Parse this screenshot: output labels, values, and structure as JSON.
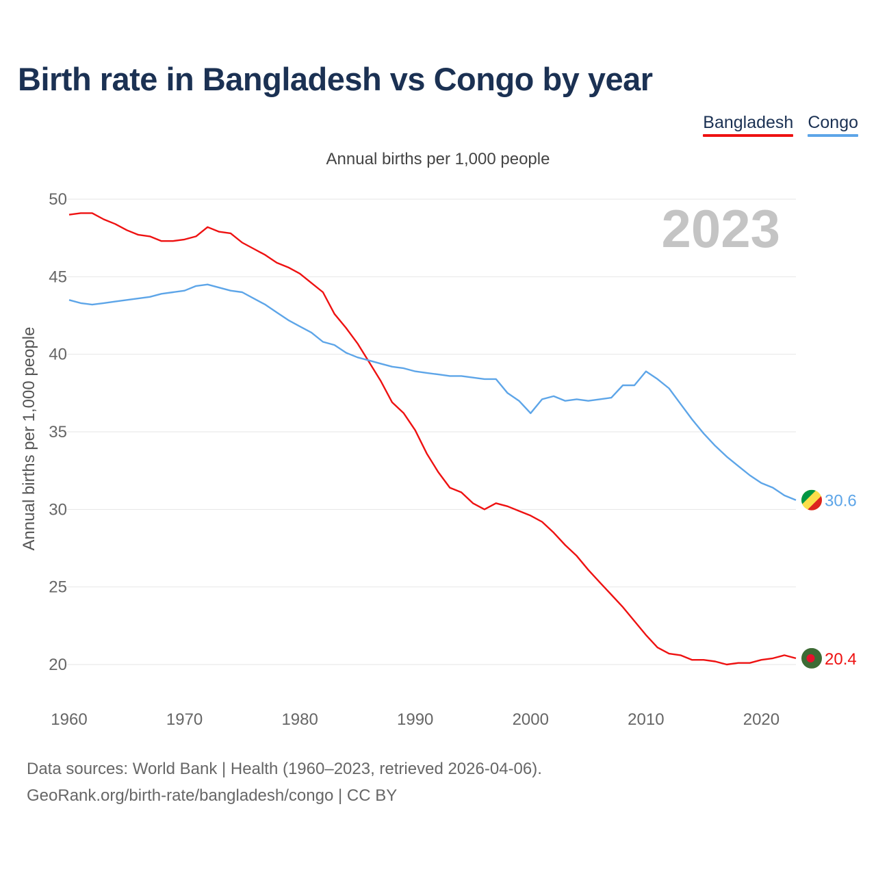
{
  "title": "Birth rate in Bangladesh vs Congo by year",
  "legend": [
    {
      "label": "Bangladesh",
      "color": "#ee1111"
    },
    {
      "label": "Congo",
      "color": "#5da5e8"
    }
  ],
  "sources": {
    "line1": "Data sources: World Bank | Health (1960–2023, retrieved 2026-04-06).",
    "line2": "GeoRank.org/birth-rate/bangladesh/congo | CC BY"
  },
  "chart_data": {
    "type": "line",
    "title": "Annual births per 1,000 people",
    "xlabel": "",
    "ylabel": "Annual births per 1,000 people",
    "watermark_year": "2023",
    "xlim": [
      1960,
      2023
    ],
    "ylim": [
      20,
      50
    ],
    "x_ticks": [
      1960,
      1970,
      1980,
      1990,
      2000,
      2010,
      2020
    ],
    "y_ticks": [
      20,
      25,
      30,
      35,
      40,
      45,
      50
    ],
    "grid": true,
    "x": [
      1960,
      1961,
      1962,
      1963,
      1964,
      1965,
      1966,
      1967,
      1968,
      1969,
      1970,
      1971,
      1972,
      1973,
      1974,
      1975,
      1976,
      1977,
      1978,
      1979,
      1980,
      1981,
      1982,
      1983,
      1984,
      1985,
      1986,
      1987,
      1988,
      1989,
      1990,
      1991,
      1992,
      1993,
      1994,
      1995,
      1996,
      1997,
      1998,
      1999,
      2000,
      2001,
      2002,
      2003,
      2004,
      2005,
      2006,
      2007,
      2008,
      2009,
      2010,
      2011,
      2012,
      2013,
      2014,
      2015,
      2016,
      2017,
      2018,
      2019,
      2020,
      2021,
      2022,
      2023
    ],
    "series": [
      {
        "name": "Bangladesh",
        "color": "#ee1111",
        "end_label": "20.4",
        "values": [
          49.0,
          49.1,
          49.1,
          48.7,
          48.4,
          48.0,
          47.7,
          47.6,
          47.3,
          47.3,
          47.4,
          47.6,
          48.2,
          47.9,
          47.8,
          47.2,
          46.8,
          46.4,
          45.9,
          45.6,
          45.2,
          44.6,
          44.0,
          42.6,
          41.7,
          40.7,
          39.5,
          38.3,
          36.9,
          36.2,
          35.1,
          33.6,
          32.4,
          31.4,
          31.1,
          30.4,
          30.0,
          30.4,
          30.2,
          29.9,
          29.6,
          29.2,
          28.5,
          27.7,
          27.0,
          26.1,
          25.3,
          24.5,
          23.7,
          22.8,
          21.9,
          21.1,
          20.7,
          20.6,
          20.3,
          20.3,
          20.2,
          20.0,
          20.1,
          20.1,
          20.3,
          20.4,
          20.6,
          20.4
        ]
      },
      {
        "name": "Congo",
        "color": "#5da5e8",
        "end_label": "30.6",
        "values": [
          43.5,
          43.3,
          43.2,
          43.3,
          43.4,
          43.5,
          43.6,
          43.7,
          43.9,
          44.0,
          44.1,
          44.4,
          44.5,
          44.3,
          44.1,
          44.0,
          43.6,
          43.2,
          42.7,
          42.2,
          41.8,
          41.4,
          40.8,
          40.6,
          40.1,
          39.8,
          39.6,
          39.4,
          39.2,
          39.1,
          38.9,
          38.8,
          38.7,
          38.6,
          38.6,
          38.5,
          38.4,
          38.4,
          37.5,
          37.0,
          36.2,
          37.1,
          37.3,
          37.0,
          37.1,
          37.0,
          37.1,
          37.2,
          38.0,
          38.0,
          38.9,
          38.4,
          37.8,
          36.8,
          35.8,
          34.9,
          34.1,
          33.4,
          32.8,
          32.2,
          31.7,
          31.4,
          30.9,
          30.6
        ]
      }
    ]
  }
}
